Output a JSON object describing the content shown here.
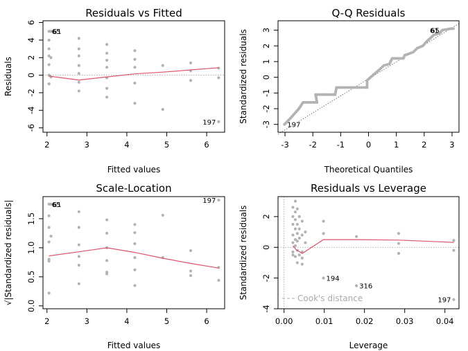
{
  "chart_data": [
    {
      "type": "scatter",
      "title": "Residuals vs Fitted",
      "xlabel": "Fitted values",
      "ylabel": "Residuals",
      "xlim": [
        1.9,
        6.45
      ],
      "ylim": [
        -6.5,
        6.2
      ],
      "xticks": [
        2,
        3,
        4,
        5,
        6
      ],
      "yticks": [
        -6,
        -4,
        -2,
        0,
        2,
        4,
        6
      ],
      "refline": 0,
      "points": [
        [
          2.05,
          5.0
        ],
        [
          2.05,
          4.0
        ],
        [
          2.05,
          3.0
        ],
        [
          2.05,
          2.2
        ],
        [
          2.05,
          1.2
        ],
        [
          2.05,
          0.0
        ],
        [
          2.05,
          -1.0
        ],
        [
          2.05,
          -1.0
        ],
        [
          2.1,
          5.0
        ],
        [
          2.1,
          2.0
        ],
        [
          2.1,
          -0.2
        ],
        [
          2.8,
          4.2
        ],
        [
          2.8,
          3.0
        ],
        [
          2.8,
          2.2
        ],
        [
          2.8,
          1.1
        ],
        [
          2.8,
          0.2
        ],
        [
          2.8,
          -0.8
        ],
        [
          2.8,
          -1.8
        ],
        [
          3.5,
          3.5
        ],
        [
          3.5,
          2.5
        ],
        [
          3.5,
          1.7
        ],
        [
          3.5,
          0.9
        ],
        [
          3.5,
          -0.3
        ],
        [
          3.5,
          -1.5
        ],
        [
          3.5,
          -2.5
        ],
        [
          4.2,
          2.8
        ],
        [
          4.2,
          1.8
        ],
        [
          4.2,
          0.9
        ],
        [
          4.2,
          -0.9
        ],
        [
          4.2,
          -3.2
        ],
        [
          4.9,
          1.1
        ],
        [
          4.9,
          -3.9
        ],
        [
          5.6,
          1.4
        ],
        [
          5.6,
          0.5
        ],
        [
          5.6,
          -0.6
        ],
        [
          6.3,
          0.8
        ],
        [
          6.3,
          -0.3
        ],
        [
          6.3,
          -5.3
        ]
      ],
      "smooth": [
        [
          2.05,
          -0.1
        ],
        [
          2.8,
          -0.55
        ],
        [
          3.5,
          -0.2
        ],
        [
          4.2,
          0.15
        ],
        [
          4.9,
          0.35
        ],
        [
          5.6,
          0.6
        ],
        [
          6.3,
          0.85
        ]
      ],
      "annotations": [
        {
          "text": "65",
          "x": 2.05,
          "y": 5.0,
          "pos": "right"
        },
        {
          "text": "61",
          "x": 2.05,
          "y": 5.0,
          "pos": "right"
        },
        {
          "text": "197",
          "x": 6.3,
          "y": -5.3,
          "pos": "left"
        }
      ]
    },
    {
      "type": "scatter",
      "title": "Q-Q Residuals",
      "xlabel": "Theoretical Quantiles",
      "ylabel": "Standardized residuals",
      "xlim": [
        -3.25,
        3.25
      ],
      "ylim": [
        -3.5,
        3.6
      ],
      "xticks": [
        -3,
        -2,
        -1,
        0,
        1,
        2,
        3
      ],
      "yticks": [
        -3,
        -2,
        -1,
        0,
        1,
        2,
        3
      ],
      "refline_diag": [
        [
          -3.25,
          -3.62
        ],
        [
          3.25,
          3.42
        ]
      ],
      "qq_segments": [
        [
          -3.02,
          -3.0
        ],
        [
          -2.8,
          -2.6
        ],
        [
          -2.6,
          -2.2
        ],
        [
          -2.5,
          -2.0
        ],
        [
          -2.35,
          -1.6
        ],
        [
          -2.3,
          -1.6
        ],
        [
          -1.85,
          -1.6
        ],
        [
          -1.9,
          -1.1
        ],
        [
          -1.2,
          -1.1
        ],
        [
          -1.15,
          -0.65
        ],
        [
          -0.05,
          -0.65
        ],
        [
          -0.05,
          -0.2
        ],
        [
          0.2,
          0.2
        ],
        [
          0.4,
          0.5
        ],
        [
          0.55,
          0.75
        ],
        [
          0.75,
          0.85
        ],
        [
          0.85,
          1.2
        ],
        [
          1.25,
          1.2
        ],
        [
          1.3,
          1.4
        ],
        [
          1.6,
          1.6
        ],
        [
          1.75,
          1.85
        ],
        [
          1.95,
          2.0
        ],
        [
          2.1,
          2.3
        ],
        [
          2.35,
          2.7
        ],
        [
          2.55,
          2.8
        ],
        [
          2.65,
          3.0
        ],
        [
          2.95,
          3.1
        ],
        [
          3.05,
          3.1
        ]
      ],
      "annotations": [
        {
          "text": "197",
          "x": -3.02,
          "y": -3.0,
          "pos": "right"
        },
        {
          "text": "65",
          "x": 2.65,
          "y": 3.0,
          "pos": "left"
        },
        {
          "text": "61",
          "x": 2.65,
          "y": 3.0,
          "pos": "left"
        }
      ]
    },
    {
      "type": "scatter",
      "title": "Scale-Location",
      "xlabel": "Fitted values",
      "ylabel": "√|Standardized residuals|",
      "xlim": [
        1.9,
        6.45
      ],
      "ylim": [
        -0.05,
        1.88
      ],
      "xticks": [
        2,
        3,
        4,
        5,
        6
      ],
      "yticks": [
        0.0,
        0.5,
        1.0,
        1.5
      ],
      "ytick_labels": [
        "0.0",
        "0.5",
        "1.0",
        "1.5"
      ],
      "points": [
        [
          2.05,
          1.75
        ],
        [
          2.05,
          1.55
        ],
        [
          2.05,
          1.35
        ],
        [
          2.05,
          1.1
        ],
        [
          2.05,
          0.8
        ],
        [
          2.05,
          0.77
        ],
        [
          2.05,
          0.22
        ],
        [
          2.1,
          1.75
        ],
        [
          2.1,
          1.2
        ],
        [
          2.8,
          1.62
        ],
        [
          2.8,
          1.35
        ],
        [
          2.8,
          1.05
        ],
        [
          2.8,
          0.85
        ],
        [
          2.8,
          0.7
        ],
        [
          2.8,
          0.38
        ],
        [
          3.5,
          1.48
        ],
        [
          3.5,
          1.25
        ],
        [
          3.5,
          1.0
        ],
        [
          3.5,
          0.78
        ],
        [
          3.5,
          0.58
        ],
        [
          3.5,
          0.55
        ],
        [
          4.2,
          1.4
        ],
        [
          4.2,
          1.26
        ],
        [
          4.2,
          1.07
        ],
        [
          4.2,
          0.83
        ],
        [
          4.2,
          0.62
        ],
        [
          4.2,
          0.35
        ],
        [
          4.9,
          1.56
        ],
        [
          4.9,
          0.83
        ],
        [
          5.6,
          0.95
        ],
        [
          5.6,
          0.6
        ],
        [
          5.6,
          0.52
        ],
        [
          6.3,
          1.82
        ],
        [
          6.3,
          0.66
        ],
        [
          6.3,
          0.44
        ]
      ],
      "smooth": [
        [
          2.05,
          0.86
        ],
        [
          2.8,
          0.93
        ],
        [
          3.5,
          1.0
        ],
        [
          4.2,
          0.92
        ],
        [
          4.9,
          0.82
        ],
        [
          5.6,
          0.73
        ],
        [
          6.3,
          0.65
        ]
      ],
      "annotations": [
        {
          "text": "65",
          "x": 2.05,
          "y": 1.75,
          "pos": "right"
        },
        {
          "text": "61",
          "x": 2.05,
          "y": 1.75,
          "pos": "right"
        },
        {
          "text": "197",
          "x": 6.3,
          "y": 1.82,
          "pos": "left"
        }
      ]
    },
    {
      "type": "scatter",
      "title": "Residuals vs Leverage",
      "xlabel": "Leverage",
      "ylabel": "Standardized residuals",
      "xlim": [
        -0.0015,
        0.0435
      ],
      "ylim": [
        -4.0,
        3.3
      ],
      "xticks": [
        0.0,
        0.01,
        0.02,
        0.03,
        0.04
      ],
      "xtick_labels": [
        "0.00",
        "0.01",
        "0.02",
        "0.03",
        "0.04"
      ],
      "yticks": [
        -4,
        -2,
        0,
        2
      ],
      "refline": 0,
      "vline": 0,
      "points": [
        [
          0.0022,
          2.6
        ],
        [
          0.0022,
          2.0
        ],
        [
          0.0022,
          1.5
        ],
        [
          0.0022,
          0.8
        ],
        [
          0.0022,
          0.3
        ],
        [
          0.0022,
          -0.3
        ],
        [
          0.0022,
          -0.5
        ],
        [
          0.0028,
          3.0
        ],
        [
          0.0028,
          2.3
        ],
        [
          0.0028,
          1.8
        ],
        [
          0.0028,
          1.2
        ],
        [
          0.0028,
          0.5
        ],
        [
          0.0028,
          0.1
        ],
        [
          0.0028,
          -0.6
        ],
        [
          0.0033,
          2.5
        ],
        [
          0.0033,
          1.5
        ],
        [
          0.0033,
          0.9
        ],
        [
          0.0033,
          0.4
        ],
        [
          0.0033,
          -0.2
        ],
        [
          0.0033,
          -1.0
        ],
        [
          0.0038,
          2.0
        ],
        [
          0.0038,
          1.2
        ],
        [
          0.0038,
          0.6
        ],
        [
          0.0038,
          -0.5
        ],
        [
          0.0045,
          1.7
        ],
        [
          0.0045,
          0.8
        ],
        [
          0.0045,
          -0.3
        ],
        [
          0.0045,
          -0.7
        ],
        [
          0.0045,
          -1.1
        ],
        [
          0.0053,
          1.0
        ],
        [
          0.0053,
          0.3
        ],
        [
          0.0098,
          1.7
        ],
        [
          0.0098,
          0.9
        ],
        [
          0.0098,
          -2.0
        ],
        [
          0.018,
          0.7
        ],
        [
          0.018,
          -2.5
        ],
        [
          0.0285,
          0.9
        ],
        [
          0.0285,
          0.25
        ],
        [
          0.0285,
          -0.4
        ],
        [
          0.0422,
          0.45
        ],
        [
          0.0422,
          -0.2
        ],
        [
          0.0422,
          -3.4
        ]
      ],
      "smooth": [
        [
          0.0022,
          0.1
        ],
        [
          0.003,
          -0.15
        ],
        [
          0.0045,
          -0.4
        ],
        [
          0.0098,
          0.5
        ],
        [
          0.018,
          0.5
        ],
        [
          0.0285,
          0.47
        ],
        [
          0.0422,
          0.32
        ]
      ],
      "annotations": [
        {
          "text": "194",
          "x": 0.0098,
          "y": -2.0,
          "pos": "right"
        },
        {
          "text": "316",
          "x": 0.018,
          "y": -2.5,
          "pos": "right"
        },
        {
          "text": "197",
          "x": 0.0422,
          "y": -3.4,
          "pos": "left"
        }
      ],
      "legend": {
        "text": "Cook's distance",
        "position": "bottom-left"
      }
    }
  ],
  "colors": {
    "points": "#b3b3b3",
    "smooth": "#df536b",
    "refline": "#999999",
    "axis": "#000000",
    "legend": "#aaaaaa"
  }
}
